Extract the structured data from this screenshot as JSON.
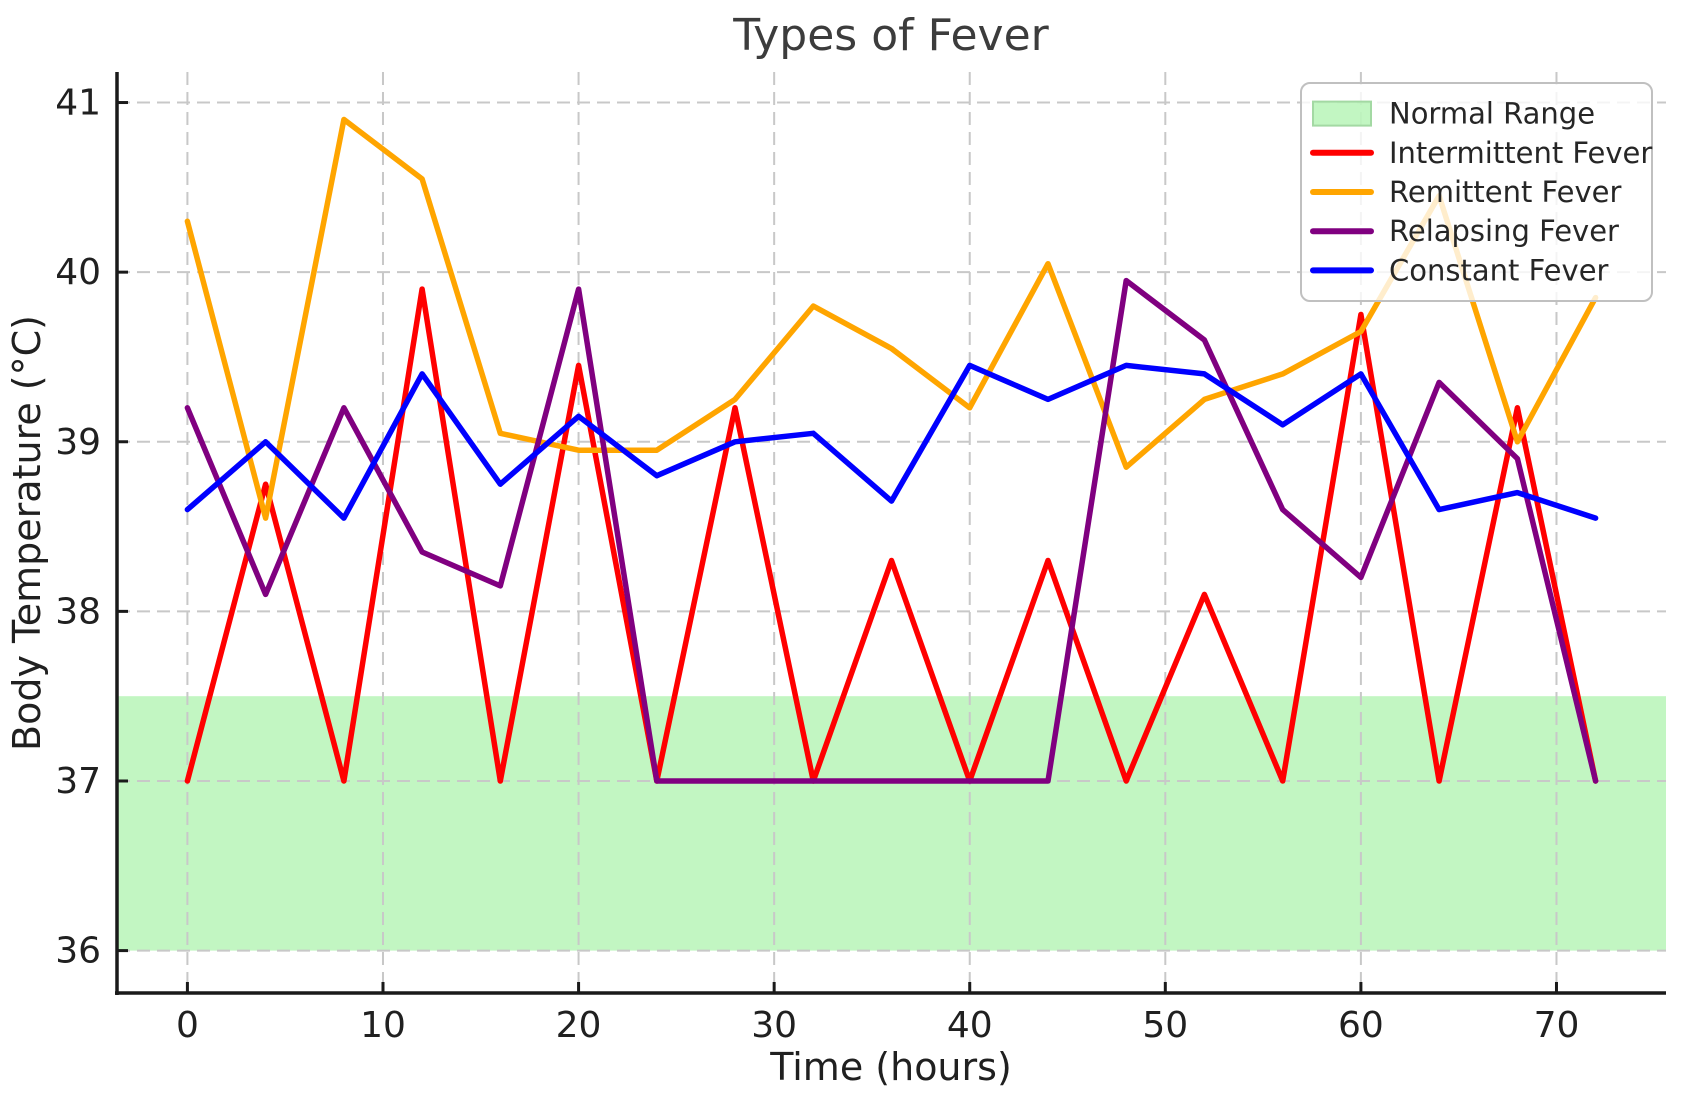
{
  "chart_data": {
    "type": "line",
    "title": "Types of Fever",
    "xlabel": "Time (hours)",
    "ylabel": "Body Temperature (°C)",
    "x": [
      0,
      4,
      8,
      12,
      16,
      20,
      24,
      28,
      32,
      36,
      40,
      44,
      48,
      52,
      56,
      60,
      64,
      68,
      72
    ],
    "series": [
      {
        "name": "Intermittent Fever",
        "color": "#ff0000",
        "values": [
          37.0,
          38.75,
          37.0,
          39.9,
          37.0,
          39.45,
          37.0,
          39.2,
          37.0,
          38.3,
          37.0,
          38.3,
          37.0,
          38.1,
          37.0,
          39.75,
          37.0,
          39.2,
          37.0
        ]
      },
      {
        "name": "Remittent Fever",
        "color": "#ffa500",
        "values": [
          40.3,
          38.55,
          40.9,
          40.55,
          39.05,
          38.95,
          38.95,
          39.25,
          39.8,
          39.55,
          39.2,
          40.05,
          38.85,
          39.25,
          39.4,
          39.65,
          40.45,
          39.0,
          39.85
        ]
      },
      {
        "name": "Relapsing Fever",
        "color": "#800080",
        "values": [
          39.2,
          38.1,
          39.2,
          38.35,
          38.15,
          39.9,
          37.0,
          37.0,
          37.0,
          37.0,
          37.0,
          37.0,
          39.95,
          39.6,
          38.6,
          38.2,
          39.35,
          38.9,
          37.0
        ]
      },
      {
        "name": "Constant Fever",
        "color": "#0000ff",
        "values": [
          38.6,
          39.0,
          38.55,
          39.4,
          38.75,
          39.15,
          38.8,
          39.0,
          39.05,
          38.65,
          39.45,
          39.25,
          39.45,
          39.4,
          39.1,
          39.4,
          38.6,
          38.7,
          38.55
        ]
      }
    ],
    "normal_range": {
      "label": "Normal Range",
      "ymin": 36.0,
      "ymax": 37.5,
      "color": "#90ee90",
      "alpha": 0.55
    },
    "xticks": [
      0,
      10,
      20,
      30,
      40,
      50,
      60,
      70
    ],
    "xticklabels": [
      "0",
      "10",
      "20",
      "30",
      "40",
      "50",
      "60",
      "70"
    ],
    "yticks": [
      36,
      37,
      38,
      39,
      40,
      41
    ],
    "yticklabels": [
      "36",
      "37",
      "38",
      "39",
      "40",
      "41"
    ],
    "xlim": [
      -3.6,
      75.6
    ],
    "ylim": [
      35.75,
      41.18
    ],
    "grid": true,
    "legend_position": "upper right",
    "legend_entries": [
      {
        "label": "Normal Range",
        "swatch": "patch",
        "color": "#90ee90"
      },
      {
        "label": "Intermittent Fever",
        "swatch": "line",
        "color": "#ff0000"
      },
      {
        "label": "Remittent Fever",
        "swatch": "line",
        "color": "#ffa500"
      },
      {
        "label": "Relapsing Fever",
        "swatch": "line",
        "color": "#800080"
      },
      {
        "label": "Constant Fever",
        "swatch": "line",
        "color": "#0000ff"
      }
    ],
    "colors": {
      "grid": "#c8c8c8",
      "spine": "#1a1a1a",
      "tick_text": "#202020",
      "title_text": "#3c3c3c",
      "legend_border": "#c0c0c0"
    }
  }
}
